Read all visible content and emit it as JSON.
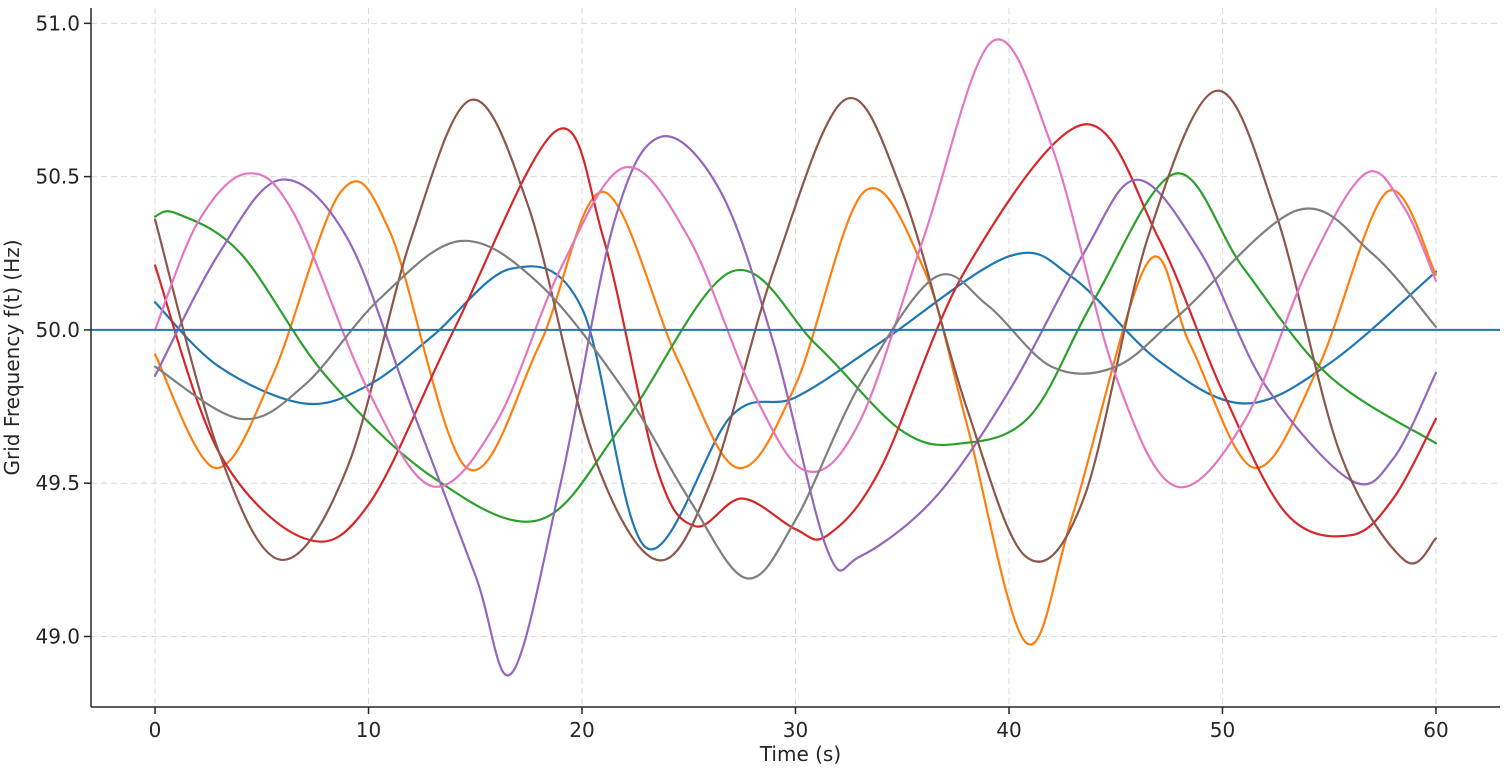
{
  "chart_data": {
    "type": "line",
    "title": "",
    "xlabel": "Time (s)",
    "ylabel": "Grid Frequency f(t) (Hz)",
    "xlim": [
      -3,
      63
    ],
    "ylim": [
      48.77,
      51.05
    ],
    "xticks": [
      0,
      10,
      20,
      30,
      40,
      50,
      60
    ],
    "yticks": [
      49.0,
      49.5,
      50.0,
      50.5,
      51.0
    ],
    "xtick_labels": [
      "0",
      "10",
      "20",
      "30",
      "40",
      "50",
      "60"
    ],
    "ytick_labels": [
      "49.0",
      "49.5",
      "50.0",
      "50.5",
      "51.0"
    ],
    "grid": true,
    "reference_line": {
      "y": 50.0,
      "color": "#1f77b4"
    },
    "series": [
      {
        "color": "#1f77b4",
        "points": [
          [
            0,
            50.09
          ],
          [
            3,
            49.88
          ],
          [
            7,
            49.76
          ],
          [
            10,
            49.82
          ],
          [
            13,
            49.98
          ],
          [
            16.7,
            50.2
          ],
          [
            20,
            50.07
          ],
          [
            23,
            49.29
          ],
          [
            27,
            49.72
          ],
          [
            30,
            49.78
          ],
          [
            34,
            49.96
          ],
          [
            40,
            50.24
          ],
          [
            43,
            50.17
          ],
          [
            47,
            49.9
          ],
          [
            51,
            49.76
          ],
          [
            55,
            49.89
          ],
          [
            60,
            50.19
          ]
        ]
      },
      {
        "color": "#ff7f0e",
        "points": [
          [
            0,
            49.92
          ],
          [
            2.8,
            49.55
          ],
          [
            5.5,
            49.85
          ],
          [
            8.7,
            50.45
          ],
          [
            11,
            50.32
          ],
          [
            14.6,
            49.55
          ],
          [
            18,
            49.95
          ],
          [
            21,
            50.45
          ],
          [
            24.5,
            49.9
          ],
          [
            27.3,
            49.55
          ],
          [
            30,
            49.82
          ],
          [
            33.2,
            50.45
          ],
          [
            36,
            50.2
          ],
          [
            38,
            49.7
          ],
          [
            40.8,
            48.98
          ],
          [
            43,
            49.4
          ],
          [
            46.5,
            50.22
          ],
          [
            48.5,
            49.95
          ],
          [
            51.5,
            49.55
          ],
          [
            54.5,
            49.88
          ],
          [
            57.7,
            50.45
          ],
          [
            60,
            50.18
          ]
        ]
      },
      {
        "color": "#2ca02c",
        "points": [
          [
            0,
            50.37
          ],
          [
            1,
            50.38
          ],
          [
            4,
            50.25
          ],
          [
            8,
            49.85
          ],
          [
            13,
            49.52
          ],
          [
            18,
            49.38
          ],
          [
            22,
            49.7
          ],
          [
            27,
            50.19
          ],
          [
            31,
            49.95
          ],
          [
            35,
            49.67
          ],
          [
            37.8,
            49.63
          ],
          [
            41,
            49.72
          ],
          [
            44,
            50.1
          ],
          [
            47.8,
            50.51
          ],
          [
            51,
            50.2
          ],
          [
            55,
            49.85
          ],
          [
            60,
            49.63
          ]
        ]
      },
      {
        "color": "#d62728",
        "points": [
          [
            0,
            50.21
          ],
          [
            3,
            49.6
          ],
          [
            7,
            49.32
          ],
          [
            10,
            49.43
          ],
          [
            14,
            50.0
          ],
          [
            18.8,
            50.65
          ],
          [
            21,
            50.3
          ],
          [
            23.5,
            49.55
          ],
          [
            25.3,
            49.36
          ],
          [
            27.5,
            49.45
          ],
          [
            30,
            49.35
          ],
          [
            31.5,
            49.33
          ],
          [
            34,
            49.55
          ],
          [
            38,
            50.2
          ],
          [
            43.5,
            50.67
          ],
          [
            47,
            50.3
          ],
          [
            50,
            49.8
          ],
          [
            53,
            49.4
          ],
          [
            56,
            49.33
          ],
          [
            58,
            49.45
          ],
          [
            60,
            49.71
          ]
        ]
      },
      {
        "color": "#9467bd",
        "points": [
          [
            0,
            49.85
          ],
          [
            3,
            50.25
          ],
          [
            5.9,
            50.49
          ],
          [
            9,
            50.3
          ],
          [
            12,
            49.75
          ],
          [
            15,
            49.2
          ],
          [
            16.7,
            48.88
          ],
          [
            19,
            49.5
          ],
          [
            21.5,
            50.35
          ],
          [
            23.7,
            50.63
          ],
          [
            26.5,
            50.45
          ],
          [
            29,
            49.95
          ],
          [
            31.5,
            49.28
          ],
          [
            33,
            49.26
          ],
          [
            36.5,
            49.45
          ],
          [
            40,
            49.8
          ],
          [
            43.5,
            50.25
          ],
          [
            46,
            50.49
          ],
          [
            49,
            50.25
          ],
          [
            52,
            49.82
          ],
          [
            56,
            49.51
          ],
          [
            58,
            49.58
          ],
          [
            60,
            49.86
          ]
        ]
      },
      {
        "color": "#8c564b",
        "points": [
          [
            0,
            50.36
          ],
          [
            3,
            49.6
          ],
          [
            5.9,
            49.25
          ],
          [
            9,
            49.55
          ],
          [
            12,
            50.3
          ],
          [
            14.8,
            50.75
          ],
          [
            17.5,
            50.4
          ],
          [
            20.5,
            49.6
          ],
          [
            23.5,
            49.25
          ],
          [
            26,
            49.5
          ],
          [
            29,
            50.2
          ],
          [
            32.3,
            50.75
          ],
          [
            35,
            50.45
          ],
          [
            38,
            49.75
          ],
          [
            40.8,
            49.26
          ],
          [
            43.5,
            49.45
          ],
          [
            46.5,
            50.3
          ],
          [
            49.7,
            50.78
          ],
          [
            52.5,
            50.38
          ],
          [
            55.5,
            49.6
          ],
          [
            58.5,
            49.25
          ],
          [
            60,
            49.32
          ]
        ]
      },
      {
        "color": "#e377c2",
        "points": [
          [
            0,
            50.0
          ],
          [
            2,
            50.35
          ],
          [
            4.3,
            50.51
          ],
          [
            6.5,
            50.38
          ],
          [
            10,
            49.8
          ],
          [
            13,
            49.49
          ],
          [
            16,
            49.7
          ],
          [
            19,
            50.2
          ],
          [
            22,
            50.53
          ],
          [
            25,
            50.3
          ],
          [
            28,
            49.8
          ],
          [
            30.5,
            49.54
          ],
          [
            33,
            49.7
          ],
          [
            36,
            50.3
          ],
          [
            39.2,
            50.94
          ],
          [
            42,
            50.6
          ],
          [
            45,
            49.85
          ],
          [
            47.8,
            49.49
          ],
          [
            51,
            49.7
          ],
          [
            54,
            50.2
          ],
          [
            56.7,
            50.51
          ],
          [
            58.5,
            50.4
          ],
          [
            60,
            50.16
          ]
        ]
      },
      {
        "color": "#7f7f7f",
        "points": [
          [
            0,
            49.88
          ],
          [
            4,
            49.71
          ],
          [
            7,
            49.82
          ],
          [
            10.5,
            50.1
          ],
          [
            14.3,
            50.29
          ],
          [
            18,
            50.15
          ],
          [
            22,
            49.8
          ],
          [
            25,
            49.45
          ],
          [
            27.7,
            49.19
          ],
          [
            30,
            49.38
          ],
          [
            33,
            49.82
          ],
          [
            36.5,
            50.17
          ],
          [
            39,
            50.08
          ],
          [
            42,
            49.88
          ],
          [
            45,
            49.88
          ],
          [
            48,
            50.05
          ],
          [
            53.5,
            50.39
          ],
          [
            57,
            50.25
          ],
          [
            60,
            50.01
          ]
        ]
      }
    ]
  }
}
